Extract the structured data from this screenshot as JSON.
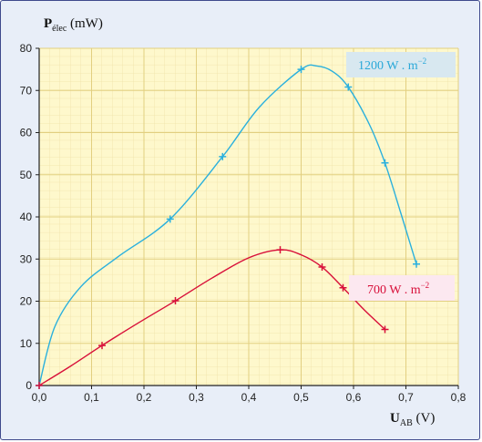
{
  "chart_data": {
    "type": "line",
    "ylabel_main": "P",
    "ylabel_sub": "élec",
    "ylabel_unit": " (mW)",
    "xlabel_main": "U",
    "xlabel_sub": "AB",
    "xlabel_unit": " (V)",
    "xlim": [
      0,
      0.8
    ],
    "ylim": [
      0,
      80
    ],
    "xticks": [
      "0,0",
      "0,1",
      "0,2",
      "0,3",
      "0,4",
      "0,5",
      "0,6",
      "0,7",
      "0,8"
    ],
    "yticks": [
      "0",
      "10",
      "20",
      "30",
      "40",
      "50",
      "60",
      "70",
      "80"
    ],
    "grid": true,
    "series": [
      {
        "name": "1200 W . m",
        "name_sup": "−2",
        "color": "#2ab0dd",
        "label_bg": "#d8e8f0",
        "points": [
          [
            0.0,
            0.0
          ],
          [
            0.25,
            39.5
          ],
          [
            0.35,
            54.3
          ],
          [
            0.5,
            75.0
          ],
          [
            0.59,
            70.8
          ],
          [
            0.66,
            52.8
          ],
          [
            0.72,
            28.8
          ]
        ],
        "curve": [
          [
            0.0,
            0.0
          ],
          [
            0.03,
            14.0
          ],
          [
            0.08,
            23.5
          ],
          [
            0.15,
            30.5
          ],
          [
            0.25,
            39.5
          ],
          [
            0.35,
            54.3
          ],
          [
            0.42,
            66.0
          ],
          [
            0.5,
            75.0
          ],
          [
            0.53,
            75.8
          ],
          [
            0.56,
            74.5
          ],
          [
            0.59,
            70.8
          ],
          [
            0.63,
            62.0
          ],
          [
            0.66,
            52.8
          ],
          [
            0.69,
            41.0
          ],
          [
            0.72,
            28.8
          ]
        ]
      },
      {
        "name": "700 W . m",
        "name_sup": "−2",
        "color": "#d8103a",
        "label_bg": "#fce8f0",
        "points": [
          [
            0.0,
            0.0
          ],
          [
            0.12,
            9.5
          ],
          [
            0.26,
            20.1
          ],
          [
            0.46,
            32.2
          ],
          [
            0.54,
            28.1
          ],
          [
            0.58,
            23.2
          ],
          [
            0.66,
            13.3
          ]
        ],
        "curve": [
          [
            0.0,
            0.0
          ],
          [
            0.06,
            4.6
          ],
          [
            0.12,
            9.5
          ],
          [
            0.19,
            14.9
          ],
          [
            0.26,
            20.1
          ],
          [
            0.33,
            25.5
          ],
          [
            0.4,
            30.3
          ],
          [
            0.46,
            32.2
          ],
          [
            0.5,
            31.0
          ],
          [
            0.54,
            28.1
          ],
          [
            0.58,
            23.2
          ],
          [
            0.62,
            18.0
          ],
          [
            0.66,
            13.3
          ]
        ]
      }
    ]
  }
}
